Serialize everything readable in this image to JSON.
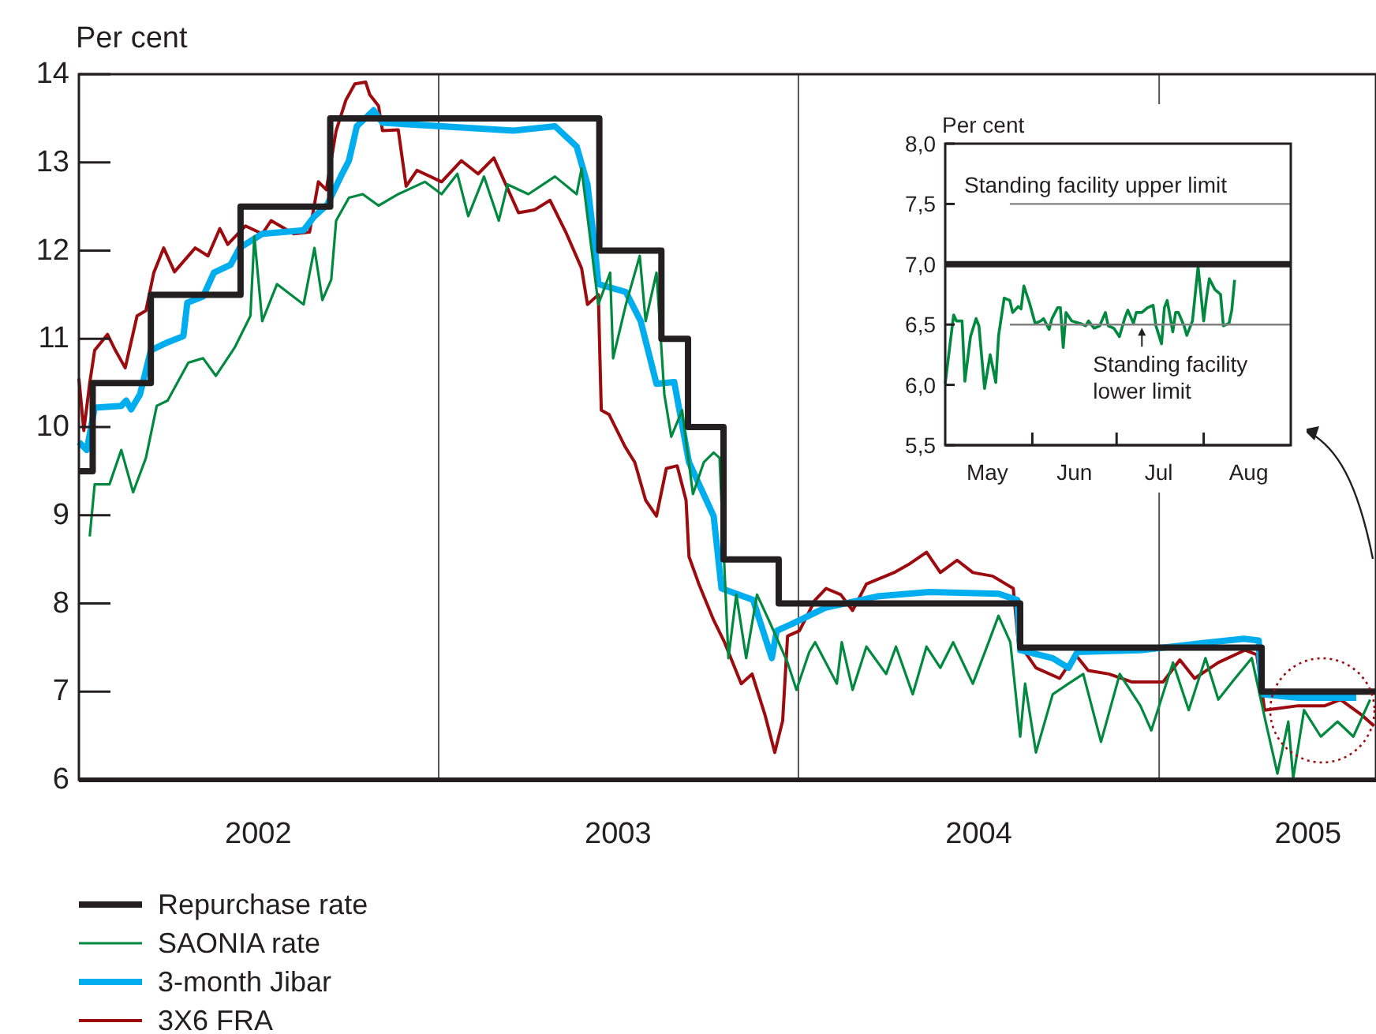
{
  "chart_data": [
    {
      "type": "line",
      "ylabel": "Per cent",
      "xlim": [
        "2002-01-01",
        "2005-08-09"
      ],
      "ylim": [
        6,
        14
      ],
      "yticks": [
        6,
        7,
        8,
        9,
        10,
        11,
        12,
        13,
        14
      ],
      "xticks": [
        {
          "value": "2002-07-02",
          "label": "2002"
        },
        {
          "value": "2003-07-02",
          "label": "2003"
        },
        {
          "value": "2004-07-02",
          "label": "2004"
        },
        {
          "value": "2005-06-01",
          "label": "2005"
        }
      ],
      "ref_lines": [
        {
          "axis": "x",
          "value": "2003-01-01",
          "color": "#555555"
        },
        {
          "axis": "x",
          "value": "2004-01-01",
          "color": "#555555"
        },
        {
          "axis": "x",
          "value": "2005-01-01",
          "color": "#555555"
        }
      ],
      "legend": "bottom left",
      "series": [
        {
          "name": "Repurchase rate",
          "type": "step",
          "color": "#231f20",
          "x": [
            "2002-01-01",
            "2002-01-15",
            "2002-03-15",
            "2002-06-14",
            "2002-09-13",
            "2003-06-13",
            "2003-08-15",
            "2003-09-11",
            "2003-10-17",
            "2003-12-12",
            "2004-08-13",
            "2005-04-15",
            "2005-08-09"
          ],
          "values": [
            9.5,
            10.5,
            11.5,
            12.5,
            13.5,
            12,
            11,
            10,
            8.5,
            8,
            7.5,
            7,
            7
          ]
        },
        {
          "name": "SAONIA rate",
          "color": "#00893f",
          "x": [
            "2002-01-12",
            "2002-01-17",
            "2002-02-01",
            "2002-02-13",
            "2002-02-25",
            "2002-03-10",
            "2002-03-21",
            "2002-04-01",
            "2002-04-22",
            "2002-05-07",
            "2002-05-20",
            "2002-06-08",
            "2002-06-24",
            "2002-06-28",
            "2002-07-06",
            "2002-07-21",
            "2002-08-17",
            "2002-08-28",
            "2002-09-05",
            "2002-09-14",
            "2002-09-19",
            "2002-10-02",
            "2002-10-16",
            "2002-11-01",
            "2002-11-21",
            "2002-12-18",
            "2003-01-04",
            "2003-01-20",
            "2003-01-31",
            "2003-02-16",
            "2003-03-03",
            "2003-03-12",
            "2003-04-02",
            "2003-04-29",
            "2003-05-21",
            "2003-05-26",
            "2003-06-12",
            "2003-06-24",
            "2003-06-27",
            "2003-07-10",
            "2003-07-24",
            "2003-07-30",
            "2003-08-10",
            "2003-08-18",
            "2003-08-25",
            "2003-09-05",
            "2003-09-16",
            "2003-09-27",
            "2003-10-07",
            "2003-10-13",
            "2003-10-22",
            "2003-10-30",
            "2003-11-09",
            "2003-11-20",
            "2003-12-02",
            "2003-12-21",
            "2003-12-30",
            "2004-01-12",
            "2004-01-18",
            "2004-02-09",
            "2004-02-14",
            "2004-02-25",
            "2004-03-10",
            "2004-03-30",
            "2004-04-09",
            "2004-04-26",
            "2004-05-10",
            "2004-05-24",
            "2004-06-06",
            "2004-06-26",
            "2004-07-12",
            "2004-07-22",
            "2004-08-03",
            "2004-08-13",
            "2004-08-18",
            "2004-08-29",
            "2004-09-15",
            "2004-10-01",
            "2004-10-16",
            "2004-11-03",
            "2004-11-22",
            "2004-12-13",
            "2004-12-24",
            "2005-01-15",
            "2005-01-31",
            "2005-02-17",
            "2005-03-02",
            "2005-03-19",
            "2005-04-05",
            "2005-04-19",
            "2005-05-01",
            "2005-05-12",
            "2005-05-17",
            "2005-05-28",
            "2005-06-14",
            "2005-07-01",
            "2005-07-17",
            "2005-08-03"
          ],
          "values": [
            8.76,
            9.35,
            9.35,
            9.74,
            9.26,
            9.65,
            10.24,
            10.3,
            10.73,
            10.78,
            10.58,
            10.9,
            11.26,
            12.16,
            11.2,
            11.62,
            11.39,
            12.03,
            11.44,
            11.67,
            12.34,
            12.6,
            12.64,
            12.51,
            12.64,
            12.78,
            12.64,
            12.87,
            12.39,
            12.84,
            12.34,
            12.75,
            12.64,
            12.84,
            12.64,
            12.93,
            11.39,
            11.75,
            10.78,
            11.39,
            11.94,
            11.2,
            11.75,
            10.37,
            9.89,
            10.19,
            9.24,
            9.6,
            9.71,
            9.65,
            7.38,
            8.1,
            7.38,
            8.1,
            7.81,
            7.33,
            7.02,
            7.45,
            7.56,
            7.09,
            7.56,
            7.02,
            7.51,
            7.2,
            7.51,
            6.97,
            7.51,
            7.27,
            7.56,
            7.09,
            7.56,
            7.86,
            7.56,
            6.49,
            7.09,
            6.31,
            6.97,
            7.09,
            7.2,
            6.43,
            7.2,
            6.84,
            6.56,
            7.33,
            6.79,
            7.38,
            6.91,
            7.15,
            7.38,
            6.66,
            6.07,
            6.66,
            6.02,
            6.79,
            6.49,
            6.66,
            6.49,
            6.91
          ]
        },
        {
          "name": "3-month Jibar",
          "color": "#00aeef",
          "x": [
            "2002-01-01",
            "2002-01-09",
            "2002-01-17",
            "2002-02-13",
            "2002-02-18",
            "2002-02-23",
            "2002-03-04",
            "2002-03-15",
            "2002-04-01",
            "2002-04-17",
            "2002-04-21",
            "2002-05-07",
            "2002-05-18",
            "2002-06-04",
            "2002-06-13",
            "2002-07-06",
            "2002-07-27",
            "2002-08-17",
            "2002-08-28",
            "2002-09-10",
            "2002-09-25",
            "2002-10-02",
            "2002-10-10",
            "2002-10-27",
            "2002-11-05",
            "2003-03-18",
            "2003-04-29",
            "2003-05-21",
            "2003-06-01",
            "2003-06-09",
            "2003-06-12",
            "2003-07-10",
            "2003-07-25",
            "2003-08-10",
            "2003-08-28",
            "2003-09-12",
            "2003-10-07",
            "2003-10-15",
            "2003-11-16",
            "2003-12-05",
            "2003-12-10",
            "2003-12-26",
            "2004-01-28",
            "2004-03-21",
            "2004-05-13",
            "2004-07-22",
            "2004-08-10",
            "2004-08-13",
            "2004-09-15",
            "2004-10-01",
            "2004-10-10",
            "2004-12-13",
            "2005-02-06",
            "2005-03-28",
            "2005-04-12",
            "2005-04-15",
            "2005-05-22",
            "2005-07-04",
            "2005-07-20"
          ],
          "values": [
            9.83,
            9.74,
            10.22,
            10.24,
            10.3,
            10.2,
            10.37,
            10.87,
            10.96,
            11.03,
            11.41,
            11.48,
            11.75,
            11.84,
            12.03,
            12.19,
            12.21,
            12.23,
            12.39,
            12.52,
            12.87,
            13.02,
            13.41,
            13.59,
            13.45,
            13.36,
            13.41,
            13.18,
            12.75,
            11.98,
            11.62,
            11.53,
            11.2,
            10.49,
            10.51,
            9.6,
            8.99,
            8.17,
            8.04,
            7.38,
            7.69,
            7.77,
            7.95,
            8.08,
            8.13,
            8.11,
            8.04,
            7.47,
            7.38,
            7.27,
            7.45,
            7.47,
            7.54,
            7.6,
            7.58,
            6.97,
            6.93,
            6.93,
            6.93
          ]
        },
        {
          "name": "3X6 FRA",
          "color": "#9d0b0f",
          "x": [
            "2002-01-01",
            "2002-01-06",
            "2002-01-12",
            "2002-01-17",
            "2002-01-30",
            "2002-02-07",
            "2002-02-17",
            "2002-03-01",
            "2002-03-10",
            "2002-03-18",
            "2002-03-28",
            "2002-04-08",
            "2002-04-29",
            "2002-05-12",
            "2002-05-24",
            "2002-06-01",
            "2002-06-19",
            "2002-07-06",
            "2002-07-15",
            "2002-08-07",
            "2002-08-23",
            "2002-09-01",
            "2002-09-09",
            "2002-09-19",
            "2002-09-29",
            "2002-10-08",
            "2002-10-19",
            "2002-10-23",
            "2002-11-01",
            "2002-11-05",
            "2002-11-21",
            "2002-11-29",
            "2002-12-10",
            "2003-01-04",
            "2003-01-24",
            "2003-02-10",
            "2003-02-26",
            "2003-03-23",
            "2003-04-08",
            "2003-04-24",
            "2003-05-10",
            "2003-05-26",
            "2003-06-01",
            "2003-06-12",
            "2003-06-15",
            "2003-06-23",
            "2003-07-09",
            "2003-07-19",
            "2003-07-30",
            "2003-08-10",
            "2003-08-20",
            "2003-08-31",
            "2003-09-09",
            "2003-09-12",
            "2003-09-22",
            "2003-10-07",
            "2003-10-18",
            "2003-11-04",
            "2003-11-15",
            "2003-11-28",
            "2003-12-08",
            "2003-12-16",
            "2003-12-21",
            "2004-01-02",
            "2004-01-18",
            "2004-01-29",
            "2004-02-13",
            "2004-02-25",
            "2004-03-10",
            "2004-04-07",
            "2004-04-23",
            "2004-05-10",
            "2004-05-24",
            "2004-06-10",
            "2004-06-26",
            "2004-07-16",
            "2004-08-06",
            "2004-08-11",
            "2004-08-29",
            "2004-09-22",
            "2004-10-08",
            "2004-10-21",
            "2004-11-11",
            "2004-12-04",
            "2005-01-05",
            "2005-01-22",
            "2005-02-06",
            "2005-03-02",
            "2005-03-29",
            "2005-04-10",
            "2005-04-18",
            "2005-05-22",
            "2005-06-18",
            "2005-07-04",
            "2005-07-25",
            "2005-08-07"
          ],
          "values": [
            10.55,
            9.96,
            10.5,
            10.87,
            11.05,
            10.87,
            10.67,
            11.26,
            11.32,
            11.75,
            12.03,
            11.76,
            12.03,
            11.94,
            12.25,
            12.07,
            12.28,
            12.19,
            12.34,
            12.19,
            12.21,
            12.78,
            12.69,
            13.36,
            13.71,
            13.89,
            13.91,
            13.77,
            13.64,
            13.36,
            13.37,
            12.73,
            12.91,
            12.78,
            13.02,
            12.87,
            13.05,
            12.43,
            12.46,
            12.57,
            12.21,
            11.8,
            11.39,
            11.5,
            10.19,
            10.14,
            9.78,
            9.6,
            9.17,
            8.99,
            9.53,
            9.56,
            9.17,
            8.53,
            8.22,
            7.81,
            7.56,
            7.09,
            7.2,
            6.74,
            6.31,
            6.67,
            7.63,
            7.69,
            8.04,
            8.17,
            8.1,
            7.92,
            8.22,
            8.35,
            8.45,
            8.58,
            8.35,
            8.49,
            8.35,
            8.31,
            8.17,
            7.56,
            7.27,
            7.15,
            7.42,
            7.24,
            7.2,
            7.11,
            7.11,
            7.36,
            7.15,
            7.33,
            7.47,
            7.42,
            6.79,
            6.84,
            6.84,
            6.91,
            6.74,
            6.61
          ]
        }
      ]
    },
    {
      "type": "line",
      "ylabel": "Per cent",
      "xlim": [
        "--05-01",
        "--09-01"
      ],
      "ylim": [
        5.5,
        8
      ],
      "yticks": [
        {
          "value": 5.5,
          "label": "5,5"
        },
        {
          "value": 6,
          "label": "6,0"
        },
        {
          "value": 6.5,
          "label": "6,5"
        },
        {
          "value": 7,
          "label": "7,0"
        },
        {
          "value": 7.5,
          "label": "7,5"
        },
        {
          "value": 8,
          "label": "8,0"
        }
      ],
      "xticks": [
        {
          "value": "--05-16",
          "label": "May"
        },
        {
          "value": "--06-01",
          "label": null
        },
        {
          "value": "--06-16",
          "label": "Jun"
        },
        {
          "value": "--07-01",
          "label": null
        },
        {
          "value": "--07-16",
          "label": "Jul"
        },
        {
          "value": "--08-01",
          "label": null
        },
        {
          "value": "--08-17",
          "label": "Aug"
        }
      ],
      "annotations": [
        "Standing facility upper limit",
        {
          "text": "Standing facility lower limit",
          "x": "--07-10",
          "y": 6.5
        }
      ],
      "series": [
        {
          "color": "#808080",
          "x": [
            "--05-24",
            "--09-01"
          ],
          "values": [
            7.5,
            7.5
          ]
        },
        {
          "color": "#808080",
          "x": [
            "--05-24",
            "--09-01"
          ],
          "values": [
            6.5,
            6.5
          ]
        },
        {
          "color": "#231f20",
          "x": [
            "--05-01",
            "--09-01"
          ],
          "values": [
            7,
            7
          ]
        },
        {
          "color": "#00893f",
          "x": [
            "--05-01",
            "--05-04",
            "--05-05",
            "--05-07",
            "--05-08",
            "--05-10",
            "--05-12",
            "--05-13",
            "--05-15",
            "--05-17",
            "--05-19",
            "--05-20",
            "--05-22",
            "--05-24",
            "--05-25",
            "--05-27",
            "--05-28",
            "--05-29",
            "--05-31",
            "--06-02",
            "--06-04",
            "--06-05",
            "--06-07",
            "--06-08",
            "--06-10",
            "--06-11",
            "--06-12",
            "--06-13",
            "--06-15",
            "--06-18",
            "--06-20",
            "--06-21",
            "--06-23",
            "--06-25",
            "--06-27",
            "--06-28",
            "--06-30",
            "--07-02",
            "--07-04",
            "--07-05",
            "--07-07",
            "--07-08",
            "--07-10",
            "--07-12",
            "--07-14",
            "--07-15",
            "--07-17",
            "--07-18",
            "--07-19",
            "--07-21",
            "--07-22",
            "--07-23",
            "--07-25",
            "--07-26",
            "--07-28",
            "--07-30",
            "--08-01",
            "--08-02",
            "--08-03",
            "--08-05",
            "--08-06",
            "--08-07",
            "--08-08",
            "--08-10",
            "--08-11",
            "--08-12"
          ],
          "values": [
            6.01,
            6.58,
            6.53,
            6.53,
            6.03,
            6.4,
            6.55,
            6.49,
            5.97,
            6.25,
            6.02,
            6.41,
            6.72,
            6.7,
            6.6,
            6.65,
            6.63,
            6.82,
            6.68,
            6.51,
            6.53,
            6.55,
            6.46,
            6.55,
            6.64,
            6.64,
            6.31,
            6.6,
            6.53,
            6.51,
            6.49,
            6.53,
            6.47,
            6.49,
            6.6,
            6.49,
            6.47,
            6.4,
            6.56,
            6.62,
            6.51,
            6.6,
            6.6,
            6.64,
            6.66,
            6.49,
            6.34,
            6.64,
            6.7,
            6.44,
            6.6,
            6.6,
            6.49,
            6.41,
            6.53,
            6.98,
            6.53,
            6.72,
            6.88,
            6.79,
            6.77,
            6.75,
            6.49,
            6.51,
            6.62,
            6.87
          ]
        }
      ]
    }
  ]
}
